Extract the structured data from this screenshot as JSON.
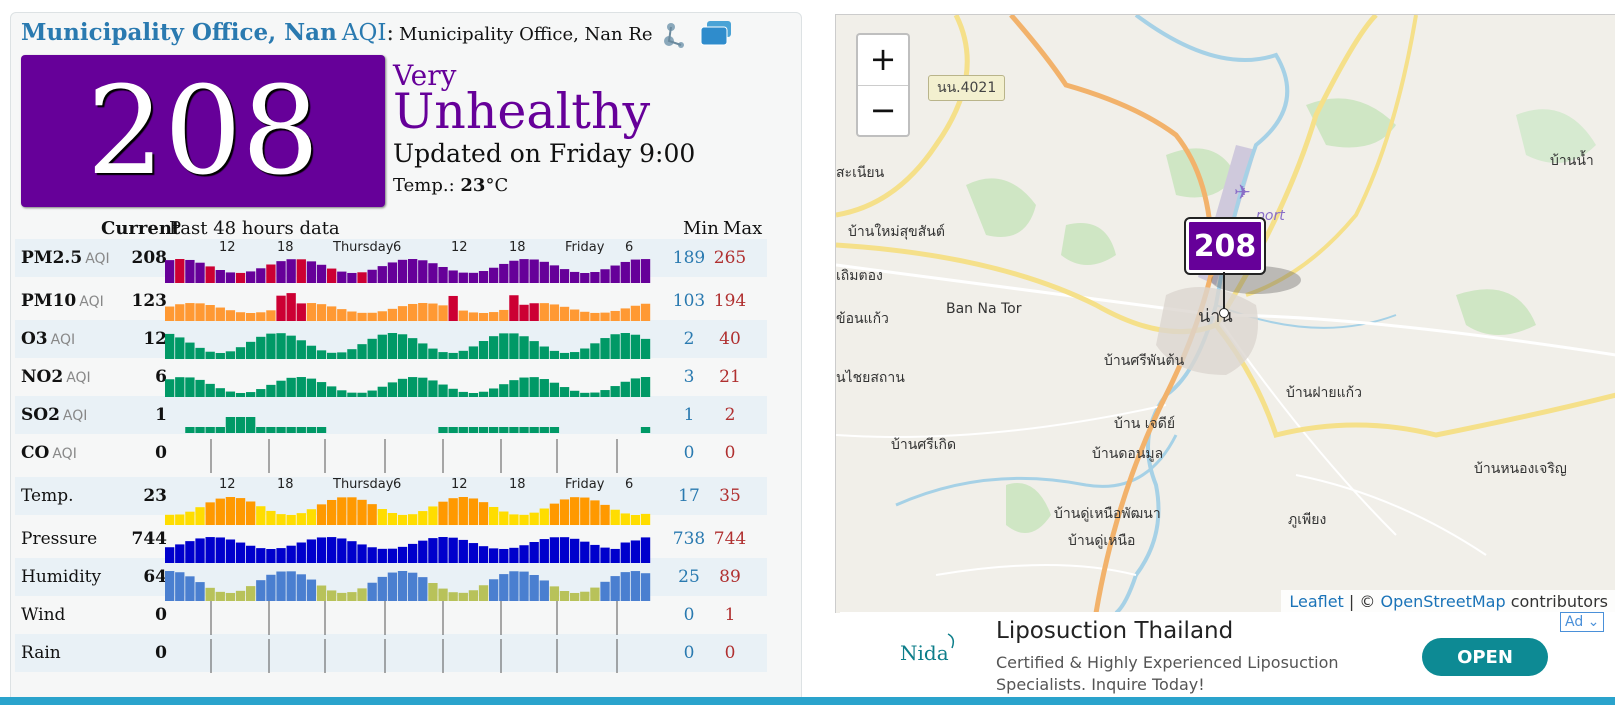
{
  "header": {
    "station": "Municipality Office, Nan",
    "aqi_word": "AQI",
    "colon": ":",
    "subtitle": "Municipality Office, Nan Re",
    "icons": [
      "share-icon",
      "windows-icon"
    ]
  },
  "aqi": {
    "value": "208",
    "level_small": "Very",
    "level_big": "Unhealthy",
    "color": "#660099",
    "updated": "Updated on Friday 9:00",
    "temp_label": "Temp.:",
    "temp_value": "23",
    "temp_unit": "°C"
  },
  "columns": {
    "current": "Current",
    "past": "Past 48 hours data",
    "min": "Min",
    "max": "Max"
  },
  "axis_labels": [
    "12",
    "18",
    "Thursday",
    "6",
    "12",
    "18",
    "Friday",
    "6"
  ],
  "pollutants": [
    {
      "name": "PM2.5",
      "unit": "AQI",
      "current": "208",
      "min": "189",
      "max": "265"
    },
    {
      "name": "PM10",
      "unit": "AQI",
      "current": "123",
      "min": "103",
      "max": "194"
    },
    {
      "name": "O3",
      "unit": "AQI",
      "current": "12",
      "min": "2",
      "max": "40"
    },
    {
      "name": "NO2",
      "unit": "AQI",
      "current": "6",
      "min": "3",
      "max": "21"
    },
    {
      "name": "SO2",
      "unit": "AQI",
      "current": "1",
      "min": "1",
      "max": "2"
    },
    {
      "name": "CO",
      "unit": "AQI",
      "current": "0",
      "min": "0",
      "max": "0"
    }
  ],
  "weather": [
    {
      "name": "Temp.",
      "current": "23",
      "min": "17",
      "max": "35"
    },
    {
      "name": "Pressure",
      "current": "744",
      "min": "738",
      "max": "744"
    },
    {
      "name": "Humidity",
      "current": "64",
      "min": "25",
      "max": "89"
    },
    {
      "name": "Wind",
      "current": "0",
      "min": "0",
      "max": "1"
    },
    {
      "name": "Rain",
      "current": "0",
      "min": "0",
      "max": "0"
    }
  ],
  "map": {
    "zoom_in": "+",
    "zoom_out": "−",
    "road_badge": "นน.4021",
    "marker_value": "208",
    "airport_label": "port",
    "labels": {
      "l1": "สะเนียน",
      "l2": "บ้านใหม่สุขสันต์",
      "l3": "เถิมตอง",
      "l4": "ข้อนแก้ว",
      "l5": "Ban Na Tor",
      "l6": "น่าน",
      "l7": "บ้านศรีพันต้น",
      "l8": "นไชยสถาน",
      "l9": "บ้าน เจดีย์",
      "l10": "บ้านศรีเกิด",
      "l11": "บ้านดอนมูล",
      "l12": "บ้านดู่เหนือพัฒนา",
      "l13": "บ้านดู่เหนือ",
      "l14": "บ้านฝายแก้ว",
      "l15": "บ้านหนองเจริญ",
      "l16": "ภูเพียง",
      "l17": "บ้านน้ำ"
    },
    "attribution": {
      "leaflet": "Leaflet",
      "sep": " | © ",
      "osm": "OpenStreetMap",
      "tail": " contributors"
    }
  },
  "ad": {
    "logo_text": "Nida",
    "title": "Liposuction Thailand",
    "text": "Certified & Highly Experienced Liposuction Specialists. Inquire Today!",
    "button": "OPEN",
    "badge": "Ad ⌄"
  },
  "colors": {
    "very_unhealthy": "#660099",
    "unhealthy": "#cc0033",
    "usg": "#ff9933",
    "good": "#009966",
    "temp_hi": "#ff9900",
    "temp_lo": "#ffdd00",
    "pressure": "#0000cc",
    "humidity_hi": "#4a7fd0",
    "humidity_lo": "#b8c25a",
    "link": "#2a7ab0"
  }
}
